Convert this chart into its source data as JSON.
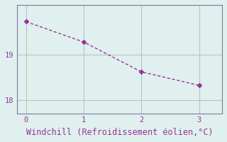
{
  "x": [
    0,
    1,
    2,
    3
  ],
  "y": [
    19.73,
    19.28,
    18.62,
    18.32
  ],
  "line_color": "#993399",
  "marker": "D",
  "marker_size": 3,
  "bg_color": "#dff0ee",
  "grid_color": "#b0c8c4",
  "axis_color": "#7a7a9a",
  "tick_color": "#993399",
  "label_color": "#993399",
  "xlabel": "Windchill (Refroidissement éolien,°C)",
  "xlabel_fontsize": 8.5,
  "yticks": [
    18,
    19
  ],
  "xticks": [
    0,
    1,
    2,
    3
  ],
  "ylim": [
    17.7,
    20.1
  ],
  "xlim": [
    -0.15,
    3.4
  ]
}
